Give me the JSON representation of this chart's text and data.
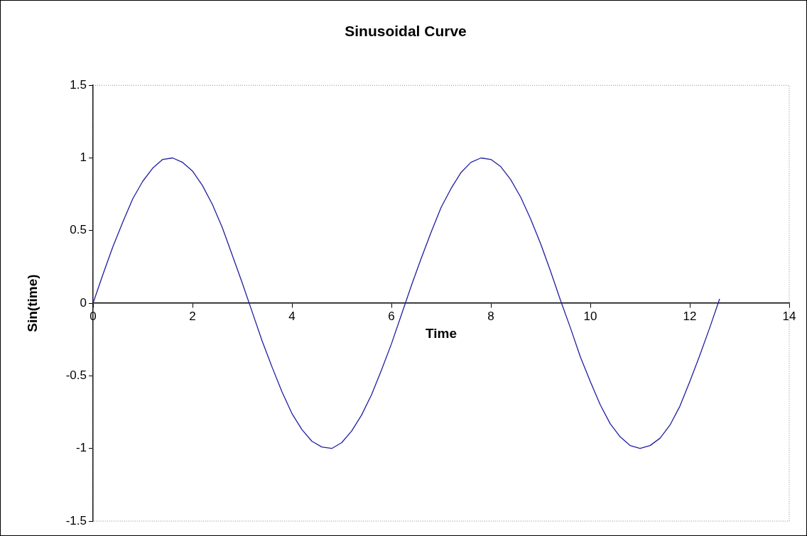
{
  "chart_data": {
    "type": "line",
    "title": "Sinusoidal Curve",
    "xlabel": "Time",
    "ylabel": "Sin(time)",
    "x": [
      0,
      0.2,
      0.4,
      0.6,
      0.8,
      1.0,
      1.2,
      1.4,
      1.6,
      1.8,
      2.0,
      2.2,
      2.4,
      2.6,
      2.8,
      3.0,
      3.2,
      3.4,
      3.6,
      3.8,
      4.0,
      4.2,
      4.4,
      4.6,
      4.8,
      5.0,
      5.2,
      5.4,
      5.6,
      5.8,
      6.0,
      6.2,
      6.4,
      6.6,
      6.8,
      7.0,
      7.2,
      7.4,
      7.6,
      7.8,
      8.0,
      8.2,
      8.4,
      8.6,
      8.8,
      9.0,
      9.2,
      9.4,
      9.6,
      9.8,
      10.0,
      10.2,
      10.4,
      10.6,
      10.8,
      11.0,
      11.2,
      11.4,
      11.6,
      11.8,
      12.0,
      12.2,
      12.4,
      12.6
    ],
    "series": [
      {
        "color": "#1f1fa0",
        "values": [
          0,
          0.2,
          0.39,
          0.56,
          0.72,
          0.84,
          0.93,
          0.99,
          1.0,
          0.97,
          0.91,
          0.81,
          0.68,
          0.52,
          0.33,
          0.14,
          -0.06,
          -0.26,
          -0.44,
          -0.61,
          -0.76,
          -0.87,
          -0.95,
          -0.99,
          -1.0,
          -0.96,
          -0.88,
          -0.77,
          -0.63,
          -0.46,
          -0.28,
          -0.08,
          0.12,
          0.31,
          0.49,
          0.66,
          0.79,
          0.9,
          0.97,
          1.0,
          0.99,
          0.94,
          0.85,
          0.73,
          0.58,
          0.41,
          0.22,
          0.02,
          -0.17,
          -0.37,
          -0.54,
          -0.7,
          -0.83,
          -0.92,
          -0.98,
          -1.0,
          -0.98,
          -0.93,
          -0.84,
          -0.71,
          -0.54,
          -0.36,
          -0.17,
          0.03
        ]
      }
    ],
    "xlim": [
      0,
      14
    ],
    "xticks": [
      0,
      2,
      4,
      6,
      8,
      10,
      12,
      14
    ],
    "ylim": [
      -1.5,
      1.5
    ],
    "yticks": [
      -1.5,
      -1,
      -0.5,
      0,
      0.5,
      1,
      1.5
    ],
    "grid": false,
    "legend": false,
    "marker": "none",
    "line_style": "solid"
  }
}
